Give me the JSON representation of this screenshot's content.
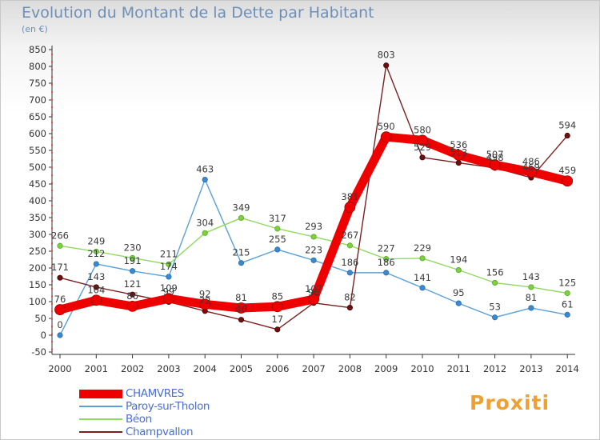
{
  "header": {
    "title": "Evolution du Montant de la Dette par Habitant",
    "unit": "(en €)"
  },
  "logo": {
    "text": "Proxiti"
  },
  "colors": {
    "CHAMVRES": "#ee0000",
    "Paroy-sur-Tholon": "#5aa0d8",
    "Béon": "#90d860",
    "Champvallon": "#7a2020"
  },
  "chart_data": {
    "type": "line",
    "title": "Evolution du Montant de la Dette par Habitant",
    "ylabel": "(en €)",
    "xlabel": "",
    "ylim": [
      -50,
      850
    ],
    "yticks": [
      -50,
      0,
      50,
      100,
      150,
      200,
      250,
      300,
      350,
      400,
      450,
      500,
      550,
      600,
      650,
      700,
      750,
      800,
      850
    ],
    "grid": false,
    "legend_position": "bottom-left",
    "x": [
      "2000",
      "2001",
      "2002",
      "2003",
      "2004",
      "2005",
      "2006",
      "2007",
      "2008",
      "2009",
      "2010",
      "2011",
      "2012",
      "2013",
      "2014"
    ],
    "series": [
      {
        "name": "CHAMVRES",
        "values": [
          76,
          104,
          86,
          109,
          92,
          81,
          85,
          107,
          381,
          590,
          580,
          536,
          507,
          486,
          459
        ]
      },
      {
        "name": "Paroy-sur-Tholon",
        "values": [
          0,
          212,
          191,
          174,
          463,
          215,
          255,
          223,
          186,
          186,
          141,
          95,
          53,
          81,
          61
        ]
      },
      {
        "name": "Béon",
        "values": [
          266,
          249,
          230,
          211,
          304,
          349,
          317,
          293,
          267,
          227,
          229,
          194,
          156,
          143,
          125
        ]
      },
      {
        "name": "Champvallon",
        "values": [
          171,
          143,
          121,
          99,
          72,
          46,
          17,
          96,
          82,
          803,
          529,
          513,
          498,
          469,
          594
        ]
      }
    ]
  }
}
